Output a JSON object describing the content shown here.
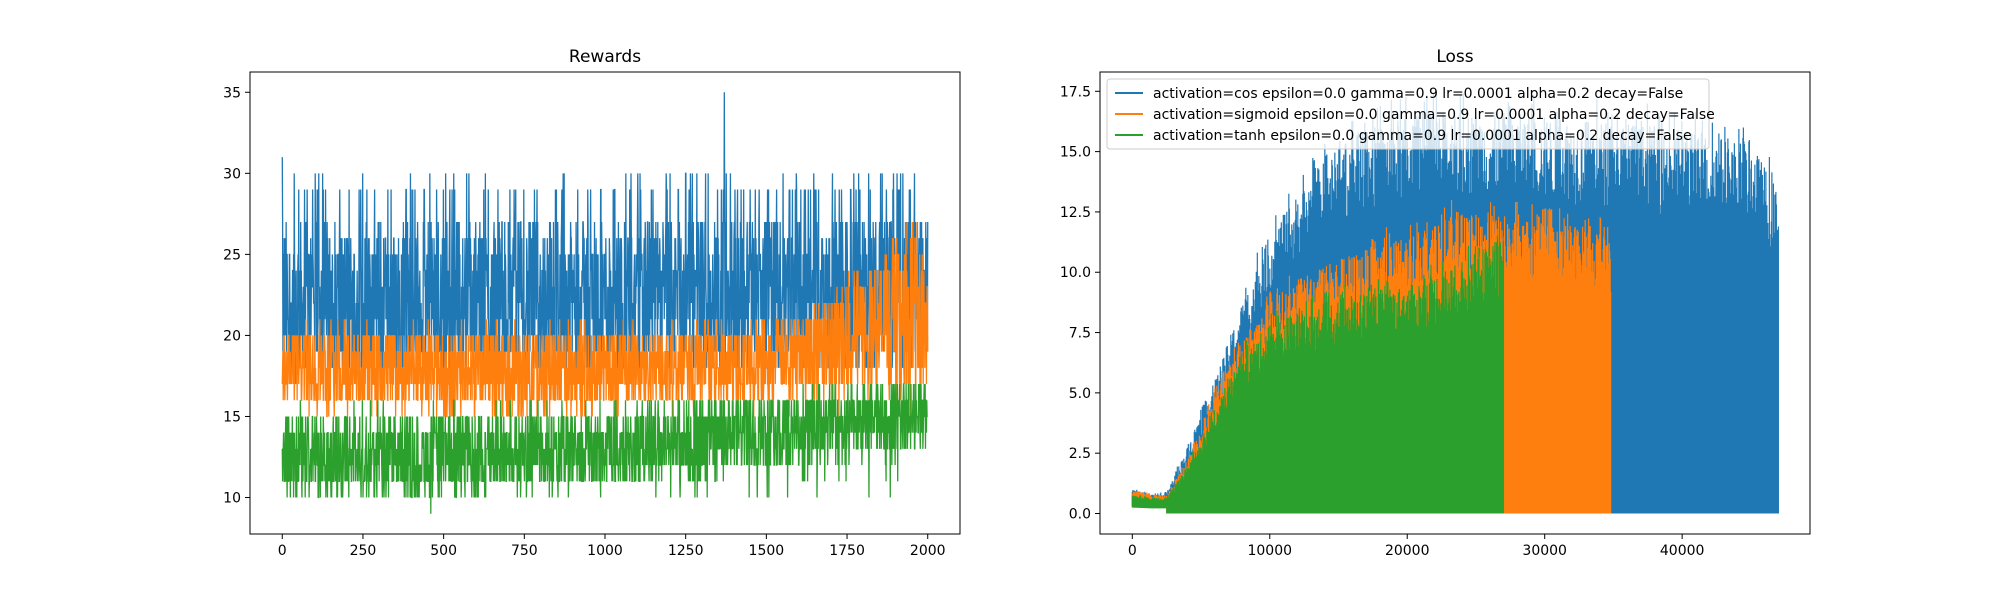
{
  "colors": {
    "cos": "#1f77b4",
    "sigmoid": "#ff7f0e",
    "tanh": "#2ca02c"
  },
  "chart_data": [
    {
      "type": "line",
      "title": "Rewards",
      "xlabel": "",
      "ylabel": "",
      "xlim": [
        -100,
        2100
      ],
      "ylim": [
        7.75,
        36.25
      ],
      "xticks": [
        0,
        250,
        500,
        750,
        1000,
        1250,
        1500,
        1750,
        2000
      ],
      "yticks": [
        10,
        15,
        20,
        25,
        30,
        35
      ],
      "legend": null,
      "series": [
        {
          "key": "cos",
          "x_range": [
            0,
            2000
          ],
          "points": 2000,
          "baseline": [
            [
              0,
              22.0
            ],
            [
              500,
              22.3
            ],
            [
              1000,
              22.5
            ],
            [
              1500,
              22.5
            ],
            [
              2000,
              22.5
            ]
          ],
          "band_low": 18,
          "band_high": 30,
          "spike_max": 35,
          "spike_at": 1370
        },
        {
          "key": "sigmoid",
          "x_range": [
            0,
            2000
          ],
          "points": 2000,
          "baseline": [
            [
              0,
              18.0
            ],
            [
              500,
              17.5
            ],
            [
              1000,
              17.8
            ],
            [
              1500,
              18.3
            ],
            [
              1750,
              20.0
            ],
            [
              2000,
              21.5
            ]
          ],
          "band_low": 15,
          "band_high": 21,
          "end_high": 28
        },
        {
          "key": "tanh",
          "x_range": [
            0,
            2000
          ],
          "points": 2000,
          "baseline": [
            [
              0,
              12.5
            ],
            [
              500,
              12.5
            ],
            [
              1000,
              13.0
            ],
            [
              1500,
              14.0
            ],
            [
              2000,
              15.0
            ]
          ],
          "band_low": 10,
          "band_high": 16,
          "spike_min": 9,
          "spike_min_at": 460
        }
      ]
    },
    {
      "type": "line",
      "title": "Loss",
      "xlabel": "",
      "ylabel": "",
      "xlim": [
        -2350,
        49300
      ],
      "ylim": [
        -0.85,
        18.3
      ],
      "xticks": [
        0,
        10000,
        20000,
        30000,
        40000
      ],
      "yticks": [
        0.0,
        2.5,
        5.0,
        7.5,
        10.0,
        12.5,
        15.0,
        17.5
      ],
      "legend": "upper left",
      "series": [
        {
          "key": "cos",
          "name": "activation=cos epsilon=0.0 gamma=0.9 lr=0.0001 alpha=0.2 decay=False",
          "x_end": 47000,
          "envelope": [
            [
              0,
              0.9
            ],
            [
              1500,
              0.7
            ],
            [
              2500,
              0.8
            ],
            [
              4000,
              2.5
            ],
            [
              6000,
              5.0
            ],
            [
              8000,
              8.0
            ],
            [
              10000,
              10.5
            ],
            [
              13000,
              12.8
            ],
            [
              16000,
              14.3
            ],
            [
              20000,
              15.0
            ],
            [
              25000,
              15.2
            ],
            [
              30000,
              15.0
            ],
            [
              35000,
              14.8
            ],
            [
              40000,
              14.5
            ],
            [
              45000,
              14.0
            ],
            [
              47000,
              12.2
            ]
          ]
        },
        {
          "key": "sigmoid",
          "name": "activation=sigmoid epsilon=0.0 gamma=0.9 lr=0.0001 alpha=0.2 decay=False",
          "x_end": 34800,
          "envelope": [
            [
              0,
              0.9
            ],
            [
              1500,
              0.7
            ],
            [
              2500,
              0.7
            ],
            [
              4000,
              2.0
            ],
            [
              6000,
              4.5
            ],
            [
              8000,
              6.5
            ],
            [
              10000,
              8.0
            ],
            [
              13000,
              9.2
            ],
            [
              16000,
              9.8
            ],
            [
              20000,
              10.5
            ],
            [
              23000,
              11.2
            ],
            [
              26000,
              11.3
            ],
            [
              30000,
              11.0
            ],
            [
              34800,
              10.8
            ]
          ]
        },
        {
          "key": "tanh",
          "name": "activation=tanh epsilon=0.0 gamma=0.9 lr=0.0001 alpha=0.2 decay=False",
          "x_end": 27000,
          "envelope": [
            [
              0,
              0.7
            ],
            [
              1500,
              0.6
            ],
            [
              2500,
              0.6
            ],
            [
              4000,
              1.8
            ],
            [
              6000,
              4.0
            ],
            [
              8000,
              6.0
            ],
            [
              10000,
              7.2
            ],
            [
              13000,
              7.8
            ],
            [
              16000,
              8.3
            ],
            [
              20000,
              8.6
            ],
            [
              24000,
              9.5
            ],
            [
              27000,
              10.5
            ]
          ]
        }
      ]
    }
  ]
}
